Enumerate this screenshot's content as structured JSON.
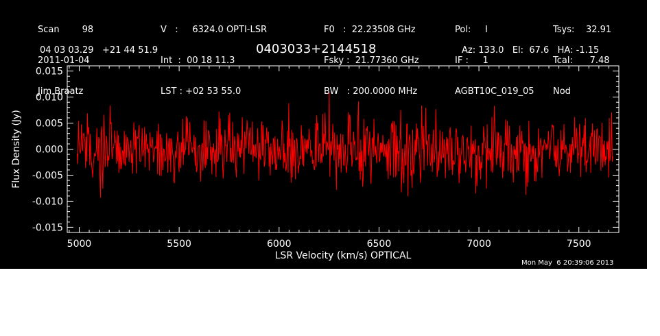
{
  "header": {
    "col1": [
      "Scan        98",
      "2011-01-04",
      "Jim Braatz"
    ],
    "col2": [
      "V   :     6324.0 OPTI-LSR",
      "Int  :  00 18 11.3",
      "LST : +02 53 55.0"
    ],
    "col3": [
      "F0   :  22.23508 GHz",
      "Fsky :  21.77360 GHz",
      "BW   : 200.0000 MHz"
    ],
    "col4": [
      "Pol:     I",
      "IF :     1",
      "AGBT10C_019_05"
    ],
    "col5": [
      "Tsys:    32.91",
      "Tcal:      7.48",
      "Nod"
    ],
    "coords": "04 03 03.29   +21 44 51.9",
    "source": "0403033+2144518",
    "pointing": "Az: 133.0   El:  67.6   HA: -1.15",
    "timestamp": "Mon May  6 20:39:06 2013"
  },
  "colors": {
    "background": "#000000",
    "axes": "#ffffff",
    "trace": "#ff0000"
  },
  "chart_data": {
    "type": "line",
    "title": "0403033+2144518",
    "xlabel": "LSR Velocity (km/s) OPTICAL",
    "ylabel": "Flux Density (Jy)",
    "xlim": [
      4940,
      7700
    ],
    "ylim": [
      -0.016,
      0.016
    ],
    "x_ticks": [
      5000,
      5500,
      6000,
      6500,
      7000,
      7500
    ],
    "x_tick_labels": [
      "5000",
      "5500",
      "6000",
      "6500",
      "7000",
      "7500"
    ],
    "y_ticks": [
      -0.015,
      -0.01,
      -0.005,
      0.0,
      0.005,
      0.01,
      0.015
    ],
    "y_tick_labels": [
      "-0.015",
      "-0.010",
      "-0.005",
      "0.000",
      "0.005",
      "0.010",
      "0.015"
    ],
    "grid": false,
    "series": [
      {
        "x_start": 4990,
        "x_end": 7670,
        "points": 900,
        "mean": 0.0,
        "noise_rms": 0.003,
        "peak_max": 0.011,
        "peak_min": -0.01
      }
    ]
  }
}
